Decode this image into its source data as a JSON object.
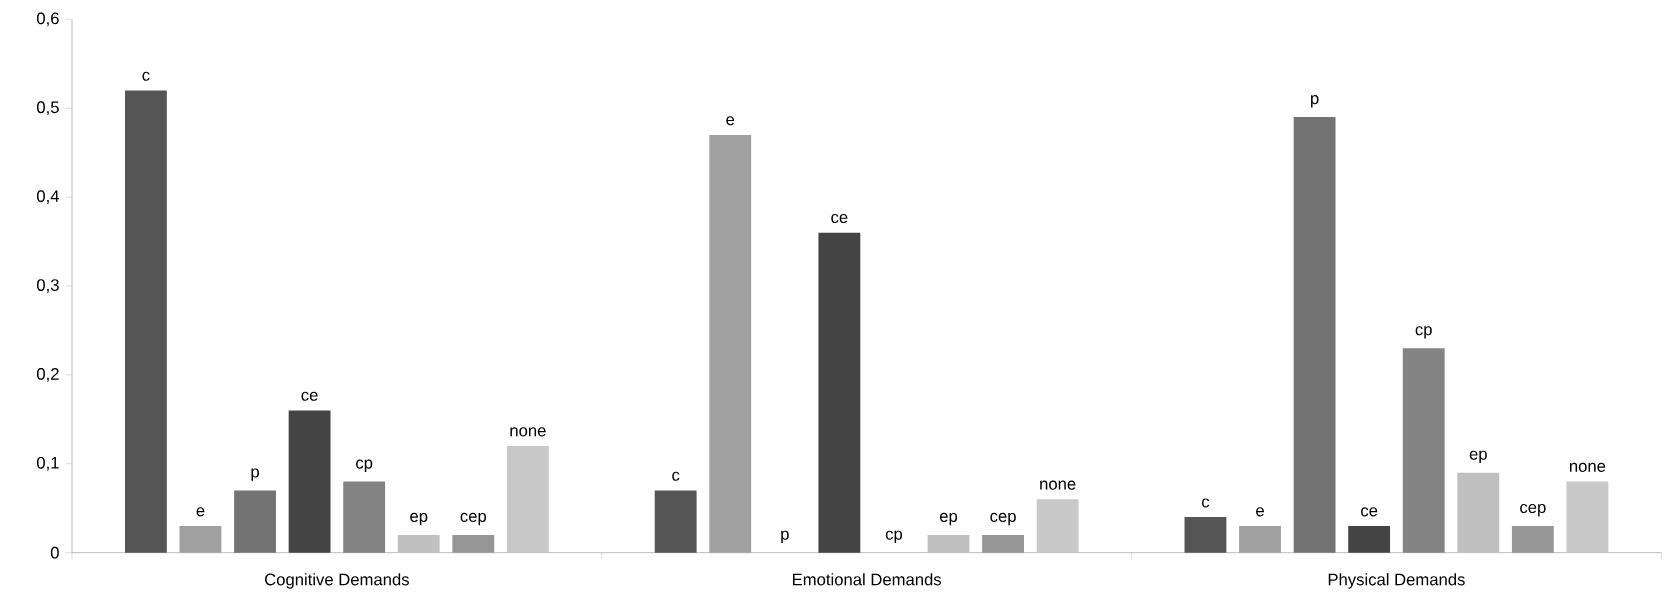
{
  "chart_data": {
    "type": "bar",
    "categories": [
      "Cognitive Demands",
      "Emotional Demands",
      "Physical Demands"
    ],
    "series": [
      {
        "name": "c",
        "color": "#555555",
        "values": [
          0.52,
          0.07,
          0.04
        ]
      },
      {
        "name": "e",
        "color": "#a0a0a0",
        "values": [
          0.03,
          0.47,
          0.03
        ]
      },
      {
        "name": "p",
        "color": "#737373",
        "values": [
          0.07,
          0,
          0.49
        ]
      },
      {
        "name": "ce",
        "color": "#444444",
        "values": [
          0.16,
          0.36,
          0.03
        ]
      },
      {
        "name": "cp",
        "color": "#838383",
        "values": [
          0.08,
          0,
          0.23
        ]
      },
      {
        "name": "ep",
        "color": "#c0c0c0",
        "values": [
          0.02,
          0.02,
          0.09
        ]
      },
      {
        "name": "cep",
        "color": "#969696",
        "values": [
          0.02,
          0.02,
          0.03
        ]
      },
      {
        "name": "none",
        "color": "#c8c8c8",
        "values": [
          0.12,
          0.06,
          0.08
        ]
      }
    ],
    "ylim": [
      0,
      0.6
    ],
    "yticks": [
      0,
      {
        "value": 0.1,
        "label": "0,1"
      },
      {
        "value": 0.2,
        "label": "0,2"
      },
      {
        "value": 0.3,
        "label": "0,3"
      },
      {
        "value": 0.4,
        "label": "0,4"
      },
      {
        "value": 0.5,
        "label": "0,5"
      },
      {
        "value": 0.6,
        "label": "0,6"
      }
    ],
    "grid": false
  }
}
